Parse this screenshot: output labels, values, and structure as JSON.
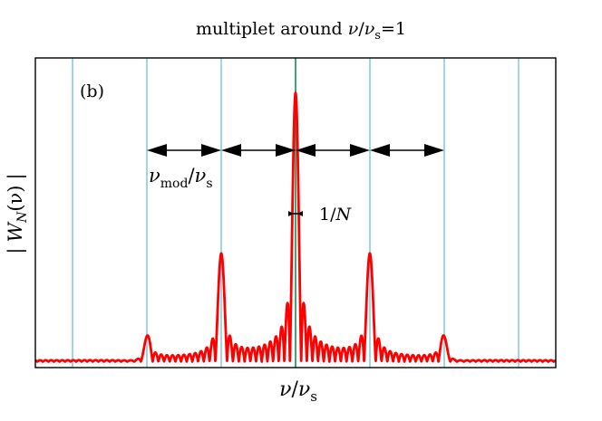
{
  "chart_data": {
    "type": "line",
    "title": {
      "prefix": "multiplet around ",
      "var": "ν",
      "slash": "/",
      "var2": "ν",
      "sub": "s",
      "suffix": "=1"
    },
    "panel_label": "(b)",
    "xlabel": {
      "var": "ν",
      "slash": "/",
      "var2": "ν",
      "sub": "s"
    },
    "ylabel": {
      "bar_left": "|",
      "var": "W",
      "sub": "N",
      "arg": "(ν)",
      "bar_right": "|"
    },
    "xlim": [
      -3.5,
      3.5
    ],
    "ylim": [
      0,
      1.05
    ],
    "grid_positions": [
      -3,
      -2,
      -1,
      1,
      2,
      3
    ],
    "center_line": 0,
    "colors": {
      "curve": "#ff0000",
      "grid": "#7ec8d8",
      "center": "#2a9a6a",
      "arrows": "#000000"
    },
    "modulation_spacing": 1,
    "sidebands": [
      {
        "position": -2,
        "amplitude": 0.1
      },
      {
        "position": -1,
        "amplitude": 0.42
      },
      {
        "position": 0,
        "amplitude": 1.0
      },
      {
        "position": 1,
        "amplitude": 0.42
      },
      {
        "position": 2,
        "amplitude": 0.1
      }
    ],
    "annotations": {
      "spacing": {
        "var": "ν",
        "sub": "mod",
        "slash": "/",
        "var2": "ν",
        "sub2": "s"
      },
      "width": {
        "num": "1/",
        "var": "N"
      }
    }
  }
}
